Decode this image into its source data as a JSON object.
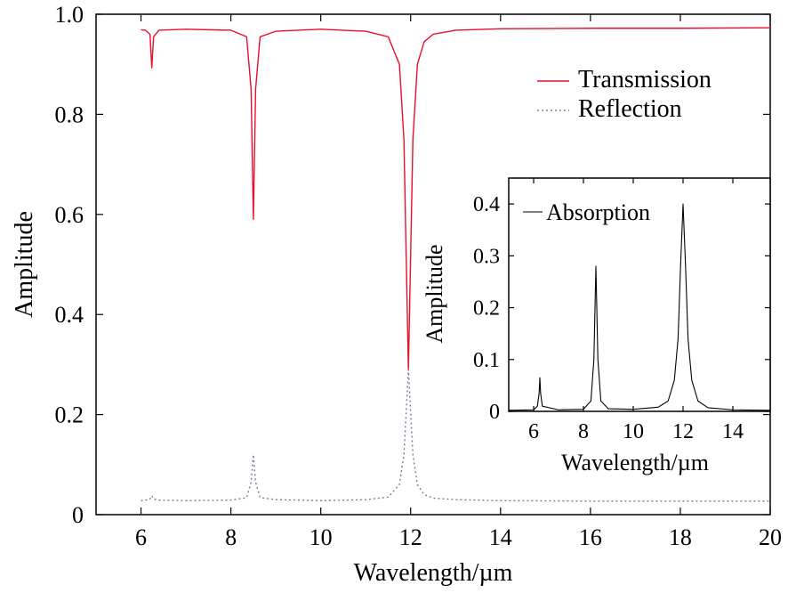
{
  "chart_data": [
    {
      "type": "line",
      "xlabel": "Wavelength/µm",
      "ylabel": "Amplitude",
      "xlim": [
        5,
        20
      ],
      "ylim": [
        0,
        1.0
      ],
      "x_ticks": [
        6,
        8,
        10,
        12,
        14,
        16,
        18,
        20
      ],
      "y_ticks": [
        0,
        0.2,
        0.4,
        0.6,
        0.8,
        1.0
      ],
      "x_tick_labels": [
        "6",
        "8",
        "10",
        "12",
        "14",
        "16",
        "18",
        "20"
      ],
      "y_tick_labels": [
        "0",
        "0.2",
        "0.4",
        "0.6",
        "0.8",
        "1.0"
      ],
      "grid": false,
      "legend_position": "top-right",
      "series": [
        {
          "name": "Transmission",
          "style": "solid",
          "color": "#e8102a",
          "x": [
            6.0,
            6.1,
            6.2,
            6.24,
            6.28,
            6.4,
            7.0,
            8.0,
            8.35,
            8.45,
            8.5,
            8.55,
            8.65,
            9.0,
            10.0,
            11.0,
            11.5,
            11.75,
            11.85,
            11.95,
            12.05,
            12.15,
            12.3,
            12.5,
            13.0,
            14.0,
            16.0,
            18.0,
            20.0
          ],
          "y": [
            0.969,
            0.968,
            0.96,
            0.893,
            0.955,
            0.968,
            0.97,
            0.968,
            0.955,
            0.85,
            0.59,
            0.85,
            0.955,
            0.966,
            0.97,
            0.966,
            0.955,
            0.9,
            0.75,
            0.29,
            0.75,
            0.9,
            0.945,
            0.96,
            0.968,
            0.971,
            0.972,
            0.972,
            0.973
          ]
        },
        {
          "name": "Reflection",
          "style": "dotted",
          "color": "#7a7a9a",
          "x": [
            6.0,
            6.1,
            6.2,
            6.24,
            6.28,
            6.4,
            7.0,
            8.0,
            8.35,
            8.45,
            8.5,
            8.55,
            8.65,
            9.0,
            10.0,
            11.0,
            11.5,
            11.75,
            11.85,
            11.95,
            12.05,
            12.15,
            12.3,
            12.5,
            13.0,
            14.0,
            16.0,
            18.0,
            20.0
          ],
          "y": [
            0.028,
            0.029,
            0.031,
            0.038,
            0.031,
            0.029,
            0.028,
            0.029,
            0.034,
            0.065,
            0.12,
            0.065,
            0.034,
            0.03,
            0.028,
            0.03,
            0.035,
            0.06,
            0.12,
            0.29,
            0.12,
            0.06,
            0.04,
            0.033,
            0.03,
            0.028,
            0.027,
            0.027,
            0.027
          ]
        }
      ]
    },
    {
      "type": "line",
      "inset": true,
      "xlabel": "Wavelength/µm",
      "ylabel": "Amplitude",
      "xlim": [
        5,
        15.5
      ],
      "ylim": [
        0,
        0.45
      ],
      "x_ticks": [
        6,
        8,
        10,
        12,
        14
      ],
      "y_ticks": [
        0,
        0.1,
        0.2,
        0.3,
        0.4
      ],
      "x_tick_labels": [
        "6",
        "8",
        "10",
        "12",
        "14"
      ],
      "y_tick_labels": [
        "0",
        "0.1",
        "0.2",
        "0.3",
        "0.4"
      ],
      "grid": false,
      "legend_position": "top-left",
      "series": [
        {
          "name": "Absorption",
          "style": "solid",
          "color": "#000000",
          "x": [
            5.0,
            6.0,
            6.15,
            6.22,
            6.25,
            6.28,
            6.35,
            7.0,
            8.0,
            8.3,
            8.42,
            8.5,
            8.58,
            8.7,
            9.0,
            10.0,
            11.0,
            11.4,
            11.65,
            11.8,
            11.9,
            12.0,
            12.1,
            12.2,
            12.35,
            12.6,
            13.0,
            14.0,
            15.5
          ],
          "y": [
            0.002,
            0.003,
            0.01,
            0.035,
            0.065,
            0.035,
            0.01,
            0.003,
            0.004,
            0.02,
            0.1,
            0.28,
            0.1,
            0.02,
            0.005,
            0.004,
            0.008,
            0.02,
            0.06,
            0.14,
            0.28,
            0.4,
            0.28,
            0.14,
            0.06,
            0.02,
            0.007,
            0.003,
            0.002
          ]
        }
      ]
    }
  ]
}
